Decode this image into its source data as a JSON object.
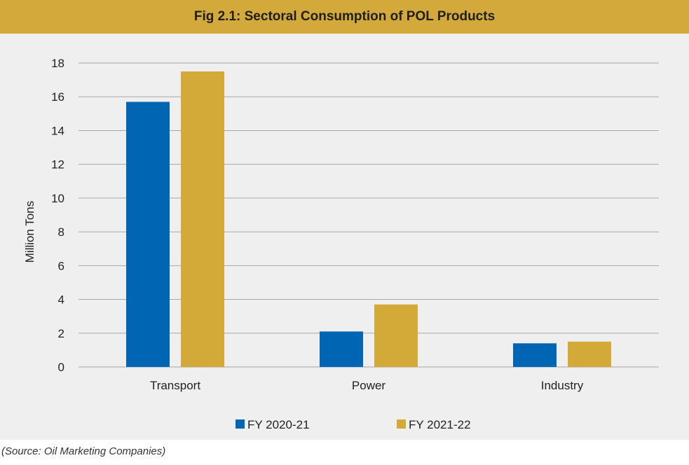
{
  "page": {
    "title": "Fig 2.1: Sectoral Consumption of POL Products",
    "source": "(Source: Oil Marketing Companies)"
  },
  "colors": {
    "title_bar": "#d2a93a",
    "panel": "#efefef",
    "series_1": "#0066b3",
    "series_2": "#d3a937",
    "grid": "#a6a6a6"
  },
  "chart_data": {
    "type": "bar",
    "title": "Fig 2.1: Sectoral Consumption of POL Products",
    "categories": [
      "Transport",
      "Power",
      "Industry"
    ],
    "series": [
      {
        "name": "FY 2020-21",
        "values": [
          15.7,
          2.1,
          1.4
        ]
      },
      {
        "name": "FY 2021-22",
        "values": [
          17.5,
          3.7,
          1.5
        ]
      }
    ],
    "xlabel": "",
    "ylabel": "Million Tons",
    "ylim": [
      0,
      18
    ],
    "yticks": [
      0,
      2,
      4,
      6,
      8,
      10,
      12,
      14,
      16,
      18
    ],
    "grid": true,
    "legend": "bottom"
  }
}
